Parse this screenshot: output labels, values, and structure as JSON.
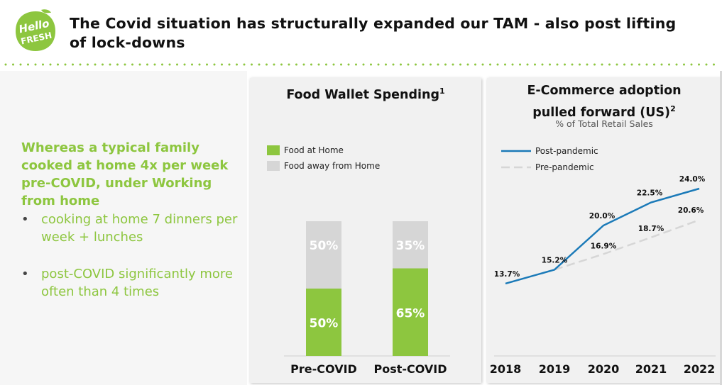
{
  "header": {
    "logo_text_line1": "Hello",
    "logo_text_line2": "FRESH",
    "title": "The Covid situation has structurally expanded our TAM - also post lifting of lock-downs"
  },
  "left": {
    "headline": "Whereas a typical family cooked at home 4x per week pre-COVID, under Working from home",
    "bullets": [
      "cooking at home 7 dinners per week + lunches",
      "post-COVID significantly more often than 4 times"
    ],
    "bullet_symbol": "•"
  },
  "colors": {
    "green": "#8dc63f",
    "grey_bar": "#d6d6d6",
    "line_post": "#1b7ab8",
    "line_pre": "#d6d6d6"
  },
  "chart_data": [
    {
      "type": "bar",
      "title": "Food Wallet Spending",
      "title_sup": "1",
      "categories": [
        "Pre-COVID",
        "Post-COVID"
      ],
      "series": [
        {
          "name": "Food at Home",
          "values": [
            50,
            65
          ],
          "labels": [
            "50%",
            "65%"
          ]
        },
        {
          "name": "Food away from Home",
          "values": [
            50,
            35
          ],
          "labels": [
            "50%",
            "35%"
          ]
        }
      ],
      "stacked": true,
      "ylim": [
        0,
        100
      ],
      "legend_position": "top-left"
    },
    {
      "type": "line",
      "title_line1": "E-Commerce adoption",
      "title_line2": "pulled forward (US)",
      "title_sup": "2",
      "subtitle": "% of Total Retail Sales",
      "x": [
        "2018",
        "2019",
        "2020",
        "2021",
        "2022"
      ],
      "series": [
        {
          "name": "Post-pandemic",
          "x": [
            "2018",
            "2019",
            "2020",
            "2021",
            "2022"
          ],
          "values": [
            13.7,
            15.2,
            20.0,
            22.5,
            24.0
          ],
          "labels": [
            "13.7%",
            "15.2%",
            "20.0%",
            "22.5%",
            "24.0%"
          ]
        },
        {
          "name": "Pre-pandemic",
          "x": [
            "2019",
            "2020",
            "2021",
            "2022"
          ],
          "values": [
            15.2,
            16.9,
            18.7,
            20.6
          ],
          "labels": [
            "",
            "16.9%",
            "18.7%",
            "20.6%"
          ]
        }
      ],
      "ylim": [
        11,
        26
      ],
      "legend_position": "top-left"
    }
  ]
}
